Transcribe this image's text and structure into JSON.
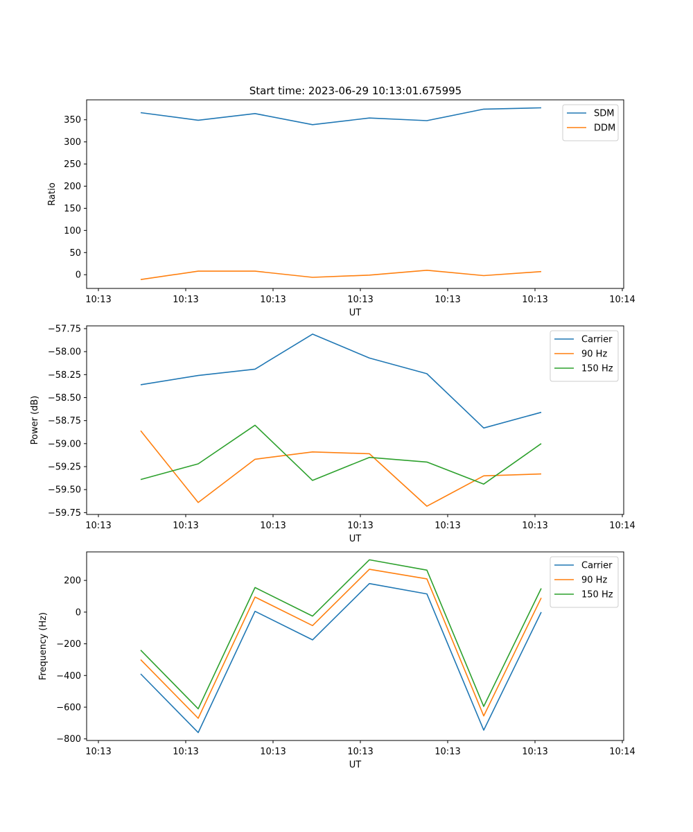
{
  "figure": {
    "title": "Start time: 2023-06-29 10:13:01.675995"
  },
  "colors": {
    "blue": "#1f77b4",
    "orange": "#ff7f0e",
    "green": "#2ca02c",
    "axes": "#000000",
    "legend_border": "#cccccc"
  },
  "chart_data": [
    {
      "type": "line",
      "xlabel": "UT",
      "ylabel": "Ratio",
      "x_tick_labels": [
        "10:13",
        "10:13",
        "10:13",
        "10:13",
        "10:13",
        "10:13",
        "10:13",
        "10:14"
      ],
      "yticks": [
        0,
        50,
        100,
        150,
        200,
        250,
        300,
        350
      ],
      "ylim": [
        -31,
        395
      ],
      "grid": false,
      "legend": "top-right",
      "series": [
        {
          "name": "SDM",
          "color": "#1f77b4",
          "values": [
            366,
            349,
            364,
            339,
            354,
            348,
            374,
            377
          ]
        },
        {
          "name": "DDM",
          "color": "#ff7f0e",
          "values": [
            -11,
            8,
            8,
            -6,
            -1,
            10,
            -2,
            7
          ]
        }
      ]
    },
    {
      "type": "line",
      "xlabel": "UT",
      "ylabel": "Power (dB)",
      "x_tick_labels": [
        "10:13",
        "10:13",
        "10:13",
        "10:13",
        "10:13",
        "10:13",
        "10:13",
        "10:14"
      ],
      "yticks": [
        -59.75,
        -59.5,
        -59.25,
        -59.0,
        -58.75,
        -58.5,
        -58.25,
        -58.0,
        -57.75
      ],
      "ytick_labels": [
        "−59.75",
        "−59.50",
        "−59.25",
        "−59.00",
        "−58.75",
        "−58.50",
        "−58.25",
        "−58.00",
        "−57.75"
      ],
      "ylim": [
        -59.77,
        -57.72
      ],
      "grid": false,
      "legend": "top-right",
      "series": [
        {
          "name": "Carrier",
          "color": "#1f77b4",
          "values": [
            -58.36,
            -58.26,
            -58.19,
            -57.81,
            -58.07,
            -58.24,
            -58.83,
            -58.66
          ]
        },
        {
          "name": "90 Hz",
          "color": "#ff7f0e",
          "values": [
            -58.86,
            -59.64,
            -59.17,
            -59.09,
            -59.11,
            -59.68,
            -59.35,
            -59.33
          ]
        },
        {
          "name": "150 Hz",
          "color": "#2ca02c",
          "values": [
            -59.39,
            -59.22,
            -58.8,
            -59.4,
            -59.15,
            -59.2,
            -59.44,
            -59.0
          ]
        }
      ]
    },
    {
      "type": "line",
      "xlabel": "UT",
      "ylabel": "Frequency (Hz)",
      "x_tick_labels": [
        "10:13",
        "10:13",
        "10:13",
        "10:13",
        "10:13",
        "10:13",
        "10:13",
        "10:14"
      ],
      "yticks": [
        -800,
        -600,
        -400,
        -200,
        0,
        200
      ],
      "ytick_labels": [
        "−800",
        "−600",
        "−400",
        "−200",
        "0",
        "200"
      ],
      "ylim": [
        -810,
        380
      ],
      "grid": false,
      "legend": "top-right",
      "series": [
        {
          "name": "Carrier",
          "color": "#1f77b4",
          "values": [
            -390,
            -760,
            5,
            -175,
            180,
            115,
            -745,
            0
          ]
        },
        {
          "name": "90 Hz",
          "color": "#ff7f0e",
          "values": [
            -300,
            -670,
            95,
            -85,
            270,
            210,
            -655,
            90
          ]
        },
        {
          "name": "150 Hz",
          "color": "#2ca02c",
          "values": [
            -240,
            -610,
            155,
            -25,
            330,
            265,
            -595,
            150
          ]
        }
      ]
    }
  ]
}
